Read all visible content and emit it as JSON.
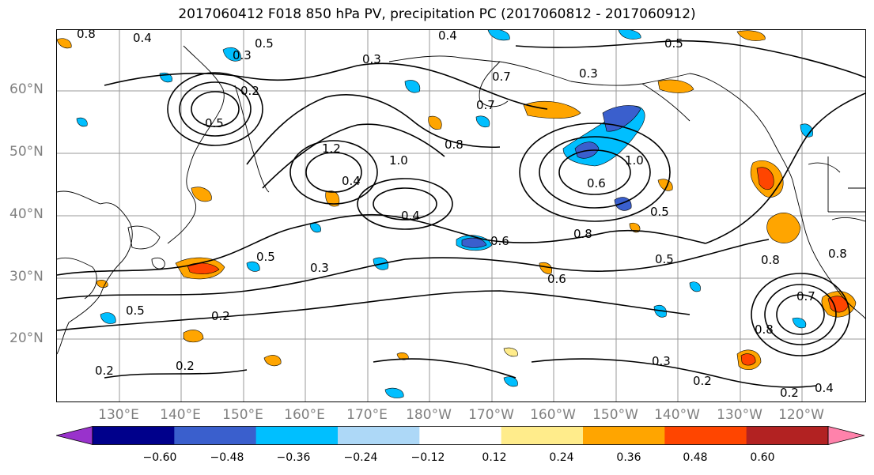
{
  "title": "2017060412 F018 850 hPa PV, precipitation PC (2017060812 - 2017060912)",
  "lat_labels": [
    "60°N",
    "50°N",
    "40°N",
    "30°N",
    "20°N"
  ],
  "lon_labels": [
    "130°E",
    "140°E",
    "150°E",
    "160°E",
    "170°E",
    "180°W",
    "170°W",
    "160°W",
    "150°W",
    "140°W",
    "130°W",
    "120°W"
  ],
  "colorbar": {
    "ticks": [
      "−0.60",
      "−0.48",
      "−0.36",
      "−0.24",
      "−0.12",
      "0.12",
      "0.24",
      "0.36",
      "0.48",
      "0.60"
    ],
    "colors": [
      "#9932cc",
      "#00008b",
      "#3a5fcd",
      "#00bfff",
      "#add8f7",
      "#ffffff",
      "#ffec8b",
      "#ffa500",
      "#ff4500",
      "#b22222",
      "#ff82ab"
    ]
  },
  "contour_labels": [
    "0.8",
    "0.4",
    "0.3",
    "0.5",
    "0.4",
    "0.3",
    "0.7",
    "0.2",
    "0.5",
    "1.2",
    "1.0",
    "0.4",
    "0.8",
    "0.7",
    "0.6",
    "1.0",
    "0.5",
    "0.8",
    "0.6",
    "0.5",
    "0.3",
    "0.4",
    "0.5",
    "0.2",
    "0.5",
    "0.2",
    "0.2",
    "0.3",
    "0.2",
    "0.2",
    "0.4",
    "0.7",
    "0.8",
    "0.6",
    "0.8",
    "0.3",
    "0.5",
    "0.8"
  ]
}
